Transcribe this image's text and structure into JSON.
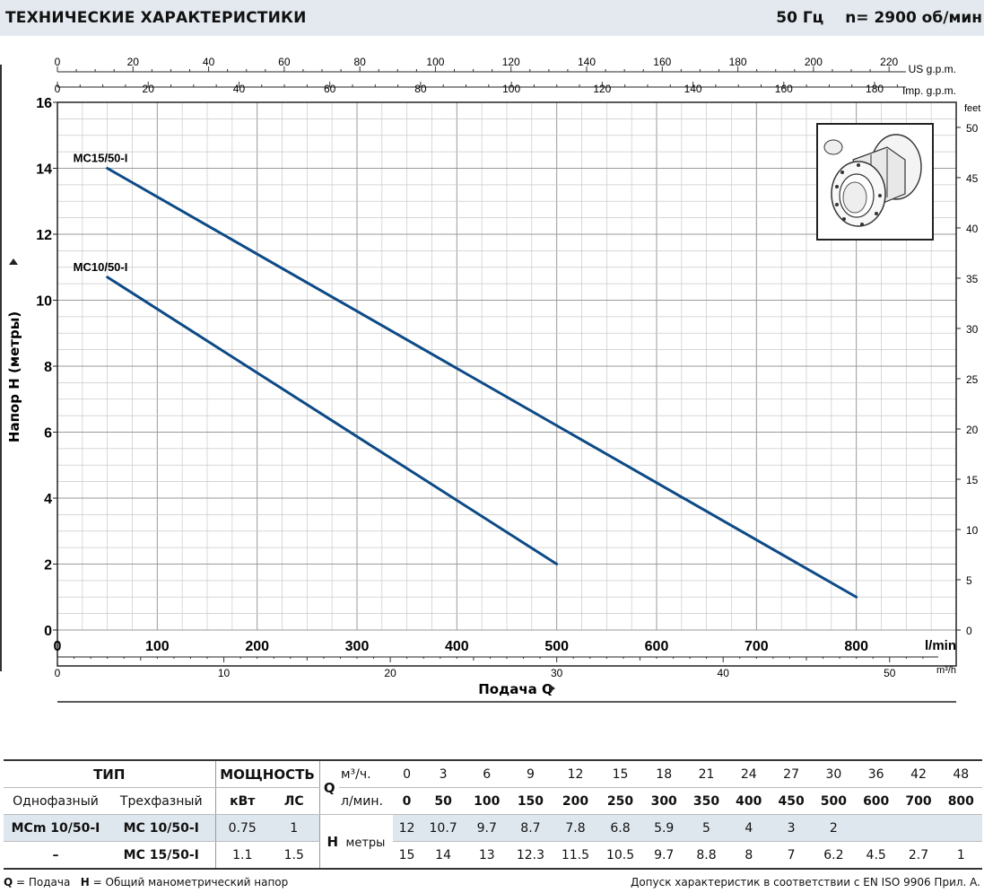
{
  "header": {
    "title": "ТЕХНИЧЕСКИЕ ХАРАКТЕРИСТИКИ",
    "frequency": "50 Гц",
    "speed": "n= 2900  об/мин"
  },
  "chart_data": {
    "type": "line",
    "ylabel": "Напор H (метры)",
    "xlabel": "Подача Q",
    "xunit": "l/min",
    "yunit": "feet",
    "xlim": [
      0,
      900
    ],
    "ylim": [
      0,
      16
    ],
    "grid": true,
    "x_ticks": [
      "0",
      "100",
      "200",
      "300",
      "400",
      "500",
      "600",
      "700",
      "800"
    ],
    "y_ticks": [
      "0",
      "2",
      "4",
      "6",
      "8",
      "10",
      "12",
      "14",
      "16"
    ],
    "feet_ticks": [
      "0",
      "5",
      "10",
      "15",
      "20",
      "25",
      "30",
      "35",
      "40",
      "45",
      "50"
    ],
    "m3h_ticks": [
      "0",
      "10",
      "20",
      "30",
      "40",
      "50"
    ],
    "m3h_unit": "m³/h",
    "us_gpm_ticks": [
      "0",
      "20",
      "40",
      "60",
      "80",
      "100",
      "120",
      "140",
      "160",
      "180",
      "200",
      "220"
    ],
    "us_gpm_label": "US g.p.m.",
    "imp_gpm_ticks": [
      "0",
      "20",
      "40",
      "60",
      "80",
      "100",
      "120",
      "140",
      "160",
      "180"
    ],
    "imp_gpm_label": "Imp. g.p.m.",
    "series": [
      {
        "name": "MC15/50-I",
        "x": [
          50,
          800
        ],
        "y": [
          14,
          1
        ],
        "color": "#0c4a86"
      },
      {
        "name": "MC10/50-I",
        "x": [
          50,
          500
        ],
        "y": [
          10.7,
          2
        ],
        "color": "#0c4a86"
      }
    ]
  },
  "table": {
    "type_header": "ТИП",
    "power_header": "МОЩНОСТЬ",
    "q_label": "Q",
    "single_phase": "Однофазный",
    "three_phase": "Трехфазный",
    "kw": "кВт",
    "hp": "ЛС",
    "m3h": "м³/ч.",
    "lmin": "л/мин.",
    "h_label": "H",
    "h_unit": "метры",
    "q_m3h": [
      "0",
      "3",
      "6",
      "9",
      "12",
      "15",
      "18",
      "21",
      "24",
      "27",
      "30",
      "36",
      "42",
      "48"
    ],
    "q_lmin": [
      "0",
      "50",
      "100",
      "150",
      "200",
      "250",
      "300",
      "350",
      "400",
      "450",
      "500",
      "600",
      "700",
      "800"
    ],
    "rows": [
      {
        "single": "MCm 10/50-I",
        "three": "MC 10/50-I",
        "kw": "0.75",
        "hp": "1",
        "h": [
          "12",
          "10.7",
          "9.7",
          "8.7",
          "7.8",
          "6.8",
          "5.9",
          "5",
          "4",
          "3",
          "2",
          "",
          "",
          ""
        ]
      },
      {
        "single": "–",
        "three": "MC 15/50-I",
        "kw": "1.1",
        "hp": "1.5",
        "h": [
          "15",
          "14",
          "13",
          "12.3",
          "11.5",
          "10.5",
          "9.7",
          "8.8",
          "8",
          "7",
          "6.2",
          "4.5",
          "2.7",
          "1"
        ]
      }
    ]
  },
  "footer": {
    "legend_q": "Q",
    "legend_q_text": " = Подача   ",
    "legend_h": "H",
    "legend_h_text": " = Общий манометрический напор",
    "tolerance": "Допуск характеристик в соответствии с EN ISO 9906 Прил. A."
  }
}
